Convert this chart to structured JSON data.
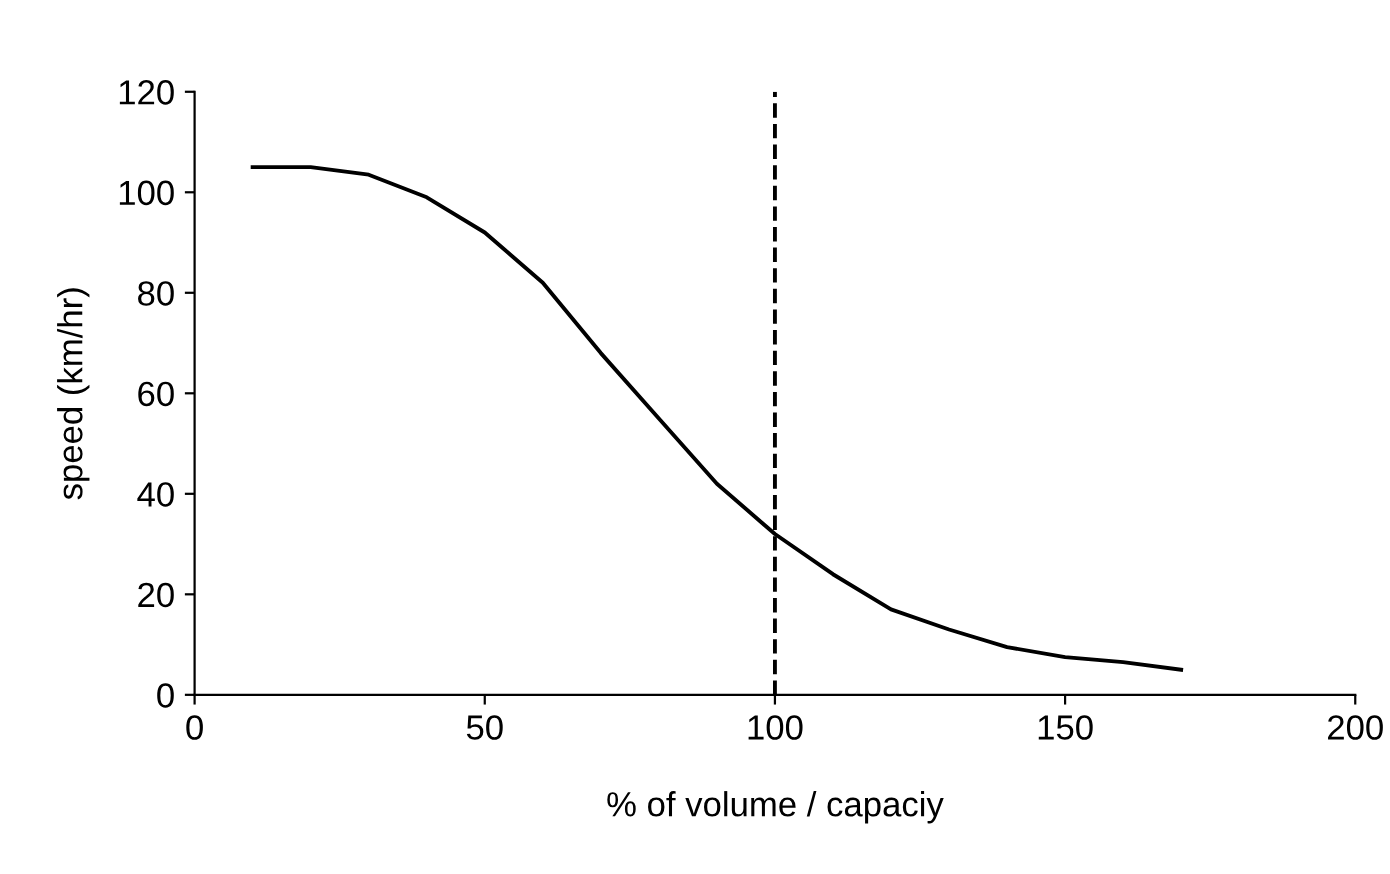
{
  "chart_data": {
    "type": "line",
    "xlabel": "% of volume / capaciy",
    "ylabel": "speed (km/hr)",
    "x": [
      10,
      20,
      30,
      40,
      50,
      60,
      70,
      80,
      90,
      100,
      110,
      120,
      130,
      140,
      150,
      160,
      170
    ],
    "series": [
      {
        "color": "#000000",
        "values": [
          105,
          105,
          103.5,
          99,
          92,
          82,
          68,
          55,
          42,
          32,
          24,
          17,
          13,
          9.5,
          7.5,
          6.5,
          5
        ]
      }
    ],
    "xlim": [
      0,
      200
    ],
    "ylim": [
      0,
      120
    ],
    "xticks": [
      0,
      50,
      100,
      150,
      200
    ],
    "yticks": [
      0,
      20,
      40,
      60,
      80,
      100,
      120
    ],
    "ref_lines": [
      {
        "axis": "x",
        "value": 100,
        "label": null,
        "color": "#000000",
        "line_style": "dashed"
      }
    ],
    "grid": false,
    "legend": false,
    "marker": "none",
    "line_style": "solid"
  }
}
